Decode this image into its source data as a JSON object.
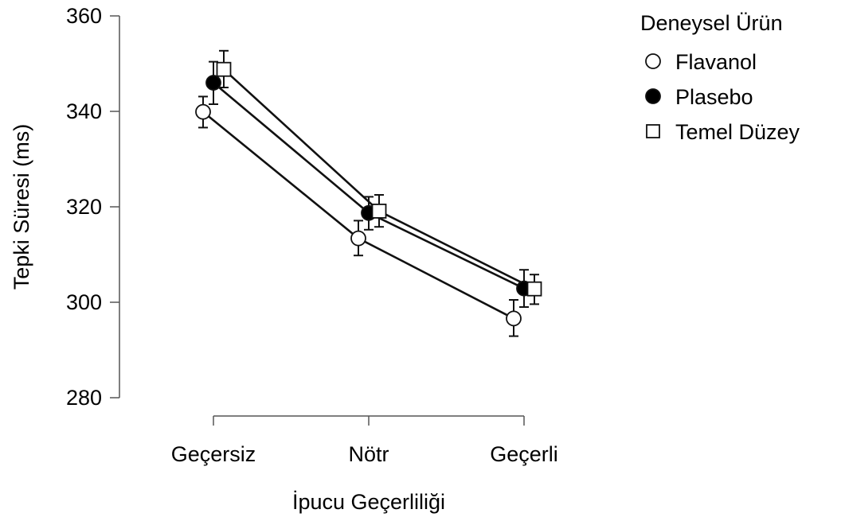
{
  "chart_data": {
    "type": "line",
    "title": "",
    "xlabel": "İpucu Geçerliliği",
    "ylabel": "Tepki Süresi (ms)",
    "categories": [
      "Geçersiz",
      "Nötr",
      "Geçerli"
    ],
    "ylim": [
      280,
      360
    ],
    "yticks": [
      280,
      300,
      320,
      340,
      360
    ],
    "grid": false,
    "legend": {
      "title": "Deneysel Ürün",
      "placement": "top-right"
    },
    "series": [
      {
        "name": "Flavanol",
        "marker": "circle-open",
        "values": [
          339.9,
          313.4,
          296.6
        ],
        "err_low": [
          336.6,
          309.8,
          292.9
        ],
        "err_high": [
          343.1,
          317.1,
          300.5
        ]
      },
      {
        "name": "Plasebo",
        "marker": "circle-filled",
        "values": [
          346.0,
          318.7,
          302.9
        ],
        "err_low": [
          341.5,
          315.2,
          299.0
        ],
        "err_high": [
          350.4,
          322.1,
          306.8
        ]
      },
      {
        "name": "Temel Düzey",
        "marker": "square-open",
        "values": [
          348.8,
          319.1,
          302.8
        ],
        "err_low": [
          345.0,
          315.8,
          299.6
        ],
        "err_high": [
          352.7,
          322.5,
          305.8
        ]
      }
    ],
    "colors": {
      "line": "#111111",
      "filled": "#000000",
      "open": "#ffffff"
    }
  }
}
